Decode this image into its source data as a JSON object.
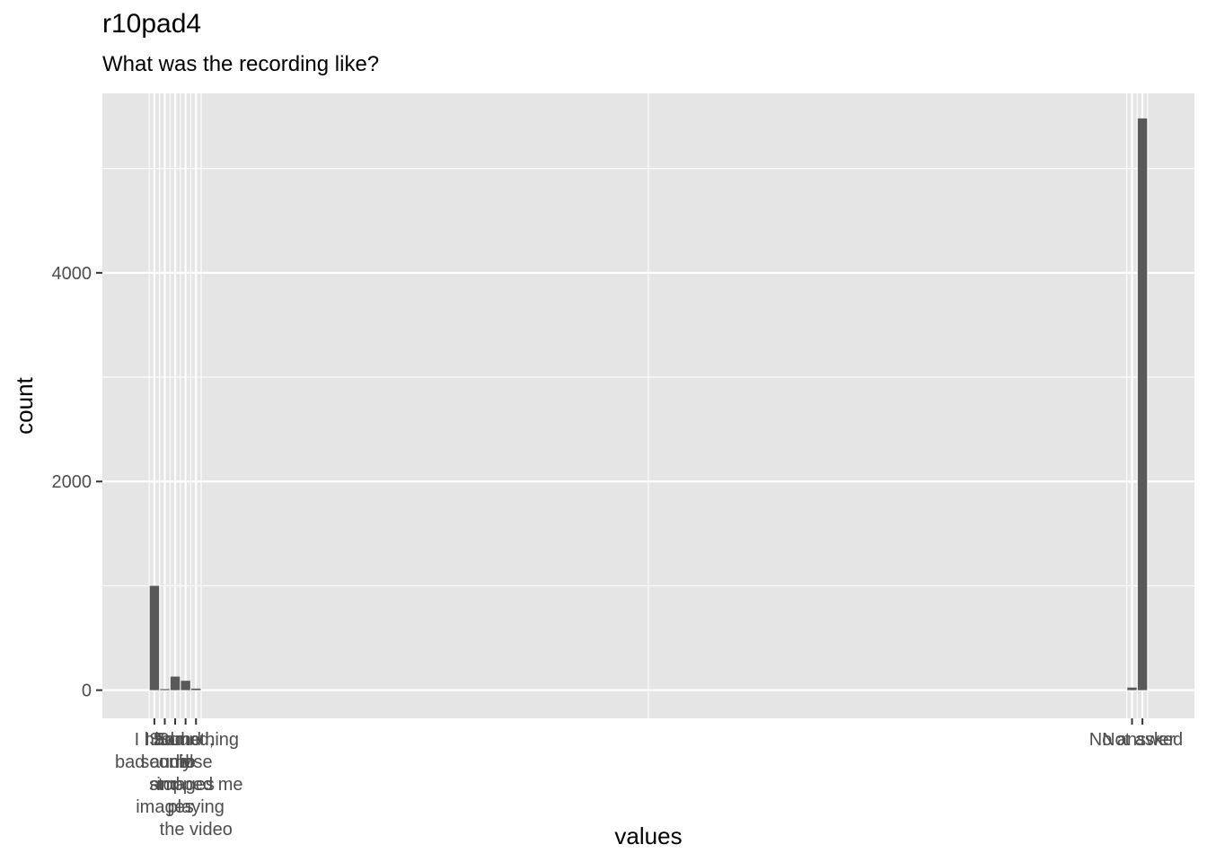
{
  "chart_data": {
    "type": "bar",
    "title": "r10pad4",
    "subtitle": "What was the recording like?",
    "xlabel": "values",
    "ylabel": "count",
    "x_range": [
      -5,
      100
    ],
    "ylim": [
      -270,
      5720
    ],
    "y_ticks": [
      0,
      2000,
      4000
    ],
    "grid": true,
    "categories": [
      {
        "x": 0,
        "value": 1000,
        "label": "I had\nbad audio"
      },
      {
        "x": 1,
        "value": 10,
        "label": "I had\nsound\nand\nimages"
      },
      {
        "x": 2,
        "value": 130,
        "label": "Sound\nonly"
      },
      {
        "x": 3,
        "value": 90,
        "label": "Sound,\nno\nimages"
      },
      {
        "x": 4,
        "value": 15,
        "label": "Something\nelse\nstopped me\nplaying\nthe video"
      },
      {
        "x": 94,
        "value": 25,
        "label": "No answer"
      },
      {
        "x": 95,
        "value": 5480,
        "label": "Not asked"
      }
    ],
    "bar_color": "#595959",
    "panel_color": "#e5e5e5",
    "grid_color": "#ffffff"
  }
}
